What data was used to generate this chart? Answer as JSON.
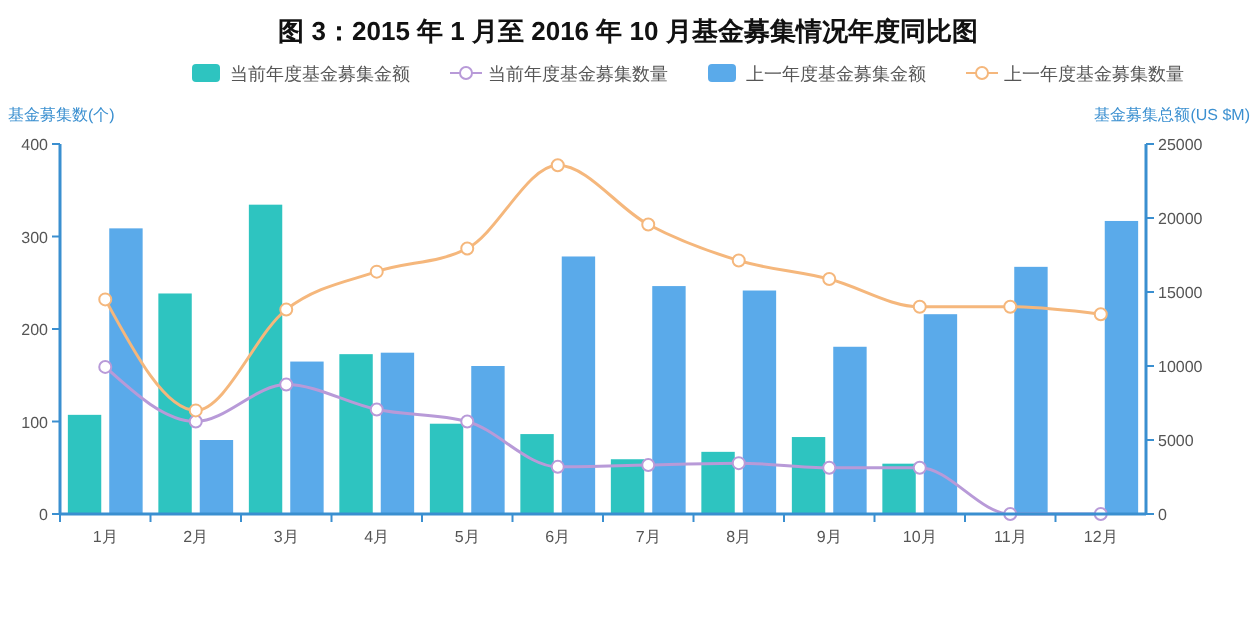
{
  "chart_data": {
    "type": "bar",
    "title": "图 3：2015 年 1 月至 2016 年 10 月基金募集情况年度同比图",
    "ylabel": "基金募集数(个)",
    "y2label": "基金募集总额(US $M)",
    "categories": [
      "1月",
      "2月",
      "3月",
      "4月",
      "5月",
      "6月",
      "7月",
      "8月",
      "9月",
      "10月",
      "11月",
      "12月"
    ],
    "series": [
      {
        "name": "当前年度基金募集金额",
        "axis": "y2",
        "color": "#2ec4c0",
        "values": [
          6700,
          14900,
          20900,
          10800,
          6100,
          5400,
          3700,
          4200,
          5200,
          3400,
          null,
          null
        ]
      },
      {
        "name": "当前年度基金募集数量",
        "type": "line",
        "axis": "y",
        "color": "#b89ad8",
        "marker": "circle",
        "values": [
          159,
          100,
          140,
          113,
          100,
          51,
          53,
          55,
          50,
          50,
          0,
          0
        ]
      },
      {
        "name": "上一年度基金募集金额",
        "axis": "y2",
        "color": "#5aaaea",
        "values": [
          19300,
          5000,
          10300,
          10900,
          10000,
          17400,
          15400,
          15100,
          11300,
          13500,
          16700,
          19800
        ]
      },
      {
        "name": "上一年度基金募集数量",
        "type": "line",
        "axis": "y",
        "color": "#f5b77c",
        "marker": "circle",
        "values": [
          232,
          112,
          221,
          262,
          287,
          377,
          313,
          274,
          254,
          224,
          224,
          216
        ]
      }
    ],
    "ylim": [
      0,
      400
    ],
    "yticks": [
      0,
      100,
      200,
      300,
      400
    ],
    "y2lim": [
      0,
      25000
    ],
    "y2ticks": [
      0,
      5000,
      10000,
      15000,
      20000,
      25000
    ],
    "legend": "top",
    "grid": false
  }
}
